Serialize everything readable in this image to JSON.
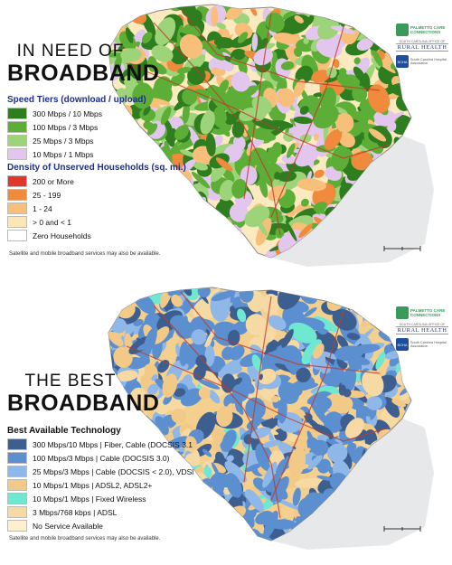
{
  "top": {
    "headline_line1": "IN NEED OF",
    "headline_line2": "BROADBAND",
    "legend1_title": "Speed Tiers (download / upload)",
    "legend1_items": [
      {
        "label": "300 Mbps / 10 Mbps",
        "color": "#2e7d1e"
      },
      {
        "label": "100 Mbps / 3 Mbps",
        "color": "#5cae36"
      },
      {
        "label": "25 Mbps / 3 Mbps",
        "color": "#9dd47a"
      },
      {
        "label": "10 Mbps / 1 Mbps",
        "color": "#e3c6ee"
      }
    ],
    "legend2_title": "Density of Unserved Households (sq. mi.)",
    "legend2_items": [
      {
        "label": "200 or More",
        "color": "#e0362b"
      },
      {
        "label": "25 - 199",
        "color": "#f08a3c"
      },
      {
        "label": "1 - 24",
        "color": "#f7bf7a"
      },
      {
        "label": "> 0 and < 1",
        "color": "#fbe7b6"
      },
      {
        "label": "Zero Households",
        "color": "#ffffff"
      }
    ],
    "note": "Satellite and mobile broadband services may also be available."
  },
  "bottom": {
    "headline_line1": "THE BEST",
    "headline_line2": "BROADBAND",
    "legend_title": "Best Available Technology",
    "legend_items": [
      {
        "label": "300 Mbps/10 Mbps | Fiber, Cable (DOCSIS 3.1",
        "color": "#3d5f8f"
      },
      {
        "label": "100 Mbps/3 Mbps | Cable (DOCSIS 3.0)",
        "color": "#5b8fcf"
      },
      {
        "label": "25 Mbps/3 Mbps | Cable (DOCSIS < 2.0), VDSl",
        "color": "#8fb8e8"
      },
      {
        "label": "10 Mbps/1 Mbps | ADSL2, ADSL2+",
        "color": "#f2c987"
      },
      {
        "label": "10 Mbps/1 Mbps | Fixed Wireless",
        "color": "#6fe8d2"
      },
      {
        "label": "3 Mbps/768 kbps | ADSL",
        "color": "#f7d9a4"
      },
      {
        "label": "No Service Available",
        "color": "#fdf0cf"
      }
    ],
    "note": "Satellite and mobile broadband services may also be available."
  },
  "logos": {
    "palmetto": "PALMETTO CARE CONNECTIONS",
    "rural_small": "SOUTH CAROLINA OFFICE OF",
    "rural_big": "RURAL HEALTH",
    "scha": "South Carolina Hospital Association",
    "scha_mark": "SCHA",
    "palmetto_color": "#3a9a5a"
  },
  "map_colors": {
    "top_base": "#fbeac0",
    "top_green": "#4f9e2d",
    "top_lilac": "#e3c6ee",
    "bottom_base": "#f4d08f",
    "bottom_blue": "#6a98d4",
    "bottom_dark": "#3d5f8f",
    "water": "#c9ccd0",
    "road": "#c0392b"
  }
}
